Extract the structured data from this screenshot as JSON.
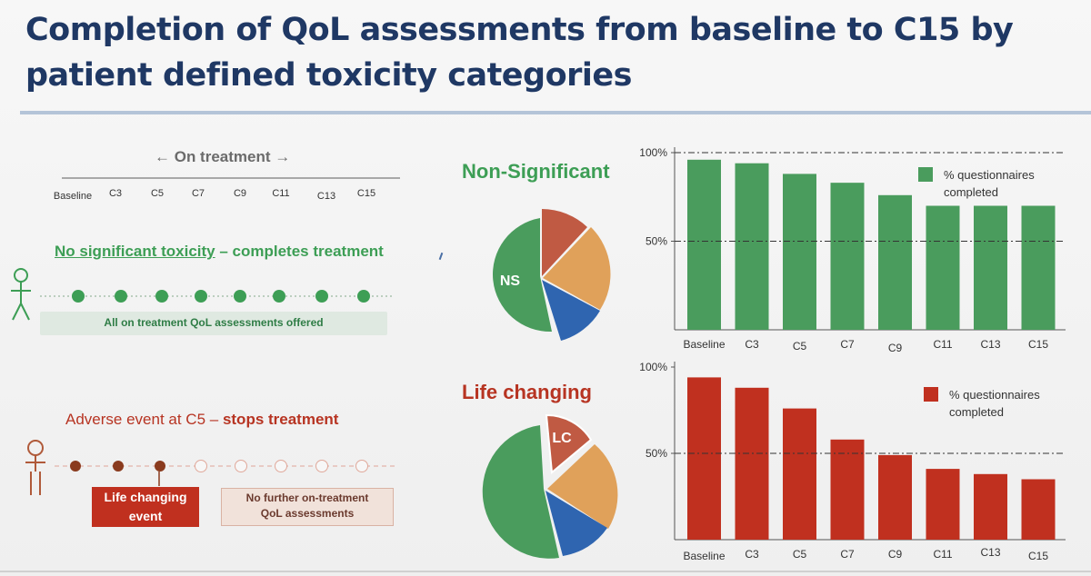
{
  "title": "Completion of QoL assessments from baseline to C15 by patient defined toxicity categories",
  "colors": {
    "title": "#1f3864",
    "green": "#4a9c5d",
    "red": "#c0301f",
    "orange": "#e0a15a",
    "blue": "#2f65b0",
    "brick": "#c05a43"
  },
  "timeline": {
    "header": "← On treatment →",
    "cycles": [
      "Baseline",
      "C3",
      "C5",
      "C7",
      "C9",
      "C11",
      "C13",
      "C15"
    ]
  },
  "scenario_ns": {
    "heading_part1": "No significant toxicity",
    "heading_part2": " – completes treatment",
    "offered_label": "All on treatment QoL assessments offered"
  },
  "scenario_lc": {
    "heading_part1": "Adverse event at C5 – ",
    "heading_part2": "stops treatment",
    "event_label_line1": "Life changing",
    "event_label_line2": "event",
    "no_further_line1": "No further on-treatment",
    "no_further_line2": "QoL assessments"
  },
  "pies": {
    "ns": {
      "title": "Non-Significant",
      "label": "NS"
    },
    "lc": {
      "title": "Life changing",
      "label": "LC"
    }
  },
  "chart_data": [
    {
      "type": "bar",
      "title": "",
      "legend": "% questionnaires completed",
      "legend_line1": "% questionnaires",
      "legend_line2": "completed",
      "categories": [
        "Baseline",
        "C3",
        "C5",
        "C7",
        "C9",
        "C11",
        "C13",
        "C15"
      ],
      "values": [
        96,
        94,
        88,
        83,
        76,
        70,
        70,
        70
      ],
      "ylim": [
        0,
        100
      ],
      "ytick_labels": [
        "100%",
        "50%"
      ],
      "yticks": [
        100,
        50
      ],
      "reference_lines": [
        100,
        50
      ],
      "color": "#4a9c5d"
    },
    {
      "type": "bar",
      "title": "",
      "legend": "% questionnaires completed",
      "legend_line1": "% questionnaires",
      "legend_line2": "completed",
      "categories": [
        "Baseline",
        "C3",
        "C5",
        "C7",
        "C9",
        "C11",
        "C13",
        "C15"
      ],
      "values": [
        94,
        88,
        76,
        58,
        49,
        41,
        38,
        35
      ],
      "ylim": [
        0,
        100
      ],
      "ytick_labels": [
        "100%",
        "50%"
      ],
      "yticks": [
        100,
        50
      ],
      "reference_lines": [
        50
      ],
      "color": "#c0301f"
    }
  ]
}
